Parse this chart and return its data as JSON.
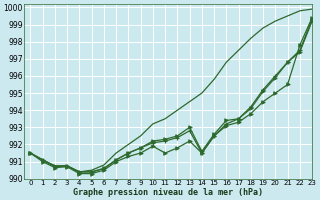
{
  "title": "Graphe pression niveau de la mer (hPa)",
  "xlim": [
    -0.5,
    23
  ],
  "ylim": [
    990,
    1000.2
  ],
  "yticks": [
    990,
    991,
    992,
    993,
    994,
    995,
    996,
    997,
    998,
    999,
    1000
  ],
  "xticks": [
    0,
    1,
    2,
    3,
    4,
    5,
    6,
    7,
    8,
    9,
    10,
    11,
    12,
    13,
    14,
    15,
    16,
    17,
    18,
    19,
    20,
    21,
    22,
    23
  ],
  "background_color": "#cce9f0",
  "grid_color": "#b8d8e0",
  "line_color": "#2d6a2d",
  "line_top": [
    991.5,
    991.1,
    990.75,
    990.75,
    990.4,
    990.5,
    990.8,
    991.5,
    992.0,
    992.5,
    993.2,
    993.5,
    994.0,
    994.5,
    995.0,
    995.8,
    996.8,
    997.5,
    998.2,
    998.8,
    999.2,
    999.5,
    999.8,
    999.9
  ],
  "line_mid1": [
    991.5,
    991.1,
    990.7,
    990.75,
    990.4,
    990.4,
    990.6,
    991.1,
    991.5,
    991.8,
    992.1,
    992.2,
    992.4,
    992.8,
    991.5,
    992.5,
    993.2,
    993.5,
    994.2,
    995.2,
    996.0,
    996.8,
    997.5,
    999.3
  ],
  "line_mid2": [
    991.5,
    991.1,
    990.75,
    990.75,
    990.4,
    990.4,
    990.6,
    991.1,
    991.5,
    991.8,
    992.2,
    992.3,
    992.5,
    993.0,
    991.6,
    992.6,
    993.4,
    993.5,
    994.1,
    995.1,
    995.9,
    996.8,
    997.4,
    999.2
  ],
  "line_low": [
    991.5,
    991.0,
    990.65,
    990.7,
    990.3,
    990.3,
    990.5,
    991.0,
    991.3,
    991.5,
    991.9,
    991.5,
    991.8,
    992.2,
    991.5,
    992.5,
    993.1,
    993.3,
    993.8,
    994.5,
    995.0,
    995.5,
    997.8,
    999.4
  ]
}
